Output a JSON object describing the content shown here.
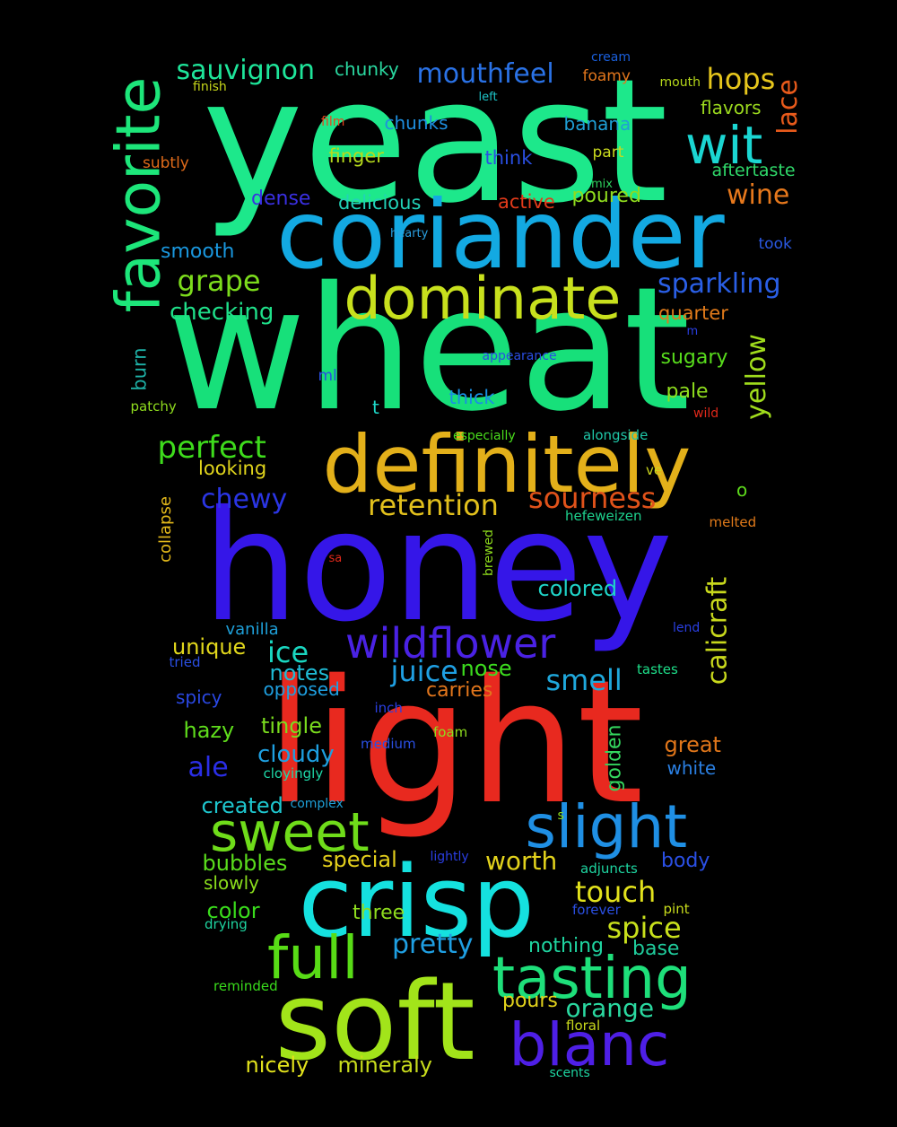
{
  "background": "#000000",
  "words": [
    {
      "text": "yeast",
      "color": "#1de88b"
    },
    {
      "text": "wheat",
      "color": "#17e07a"
    },
    {
      "text": "honey",
      "color": "#3516e8"
    },
    {
      "text": "light",
      "color": "#e8291f"
    },
    {
      "text": "coriander",
      "color": "#13a9e2"
    },
    {
      "text": "definitely",
      "color": "#e3b01a"
    },
    {
      "text": "crisp",
      "color": "#15e1df"
    },
    {
      "text": "soft",
      "color": "#a2e41a"
    },
    {
      "text": "dominate",
      "color": "#c8e01d"
    },
    {
      "text": "favorite",
      "color": "#1de67a"
    },
    {
      "text": "wildflower",
      "color": "#4a22e4"
    },
    {
      "text": "slight",
      "color": "#1f8fe4"
    },
    {
      "text": "sweet",
      "color": "#6fdc1a"
    },
    {
      "text": "full",
      "color": "#58dc16"
    },
    {
      "text": "tasting",
      "color": "#1edf7a"
    },
    {
      "text": "blanc",
      "color": "#4e1fe6"
    },
    {
      "text": "wit",
      "color": "#1bd6d2"
    },
    {
      "text": "sauvignon",
      "color": "#1ee59a"
    },
    {
      "text": "mouthfeel",
      "color": "#2a72e6"
    },
    {
      "text": "hops",
      "color": "#e6c61c"
    },
    {
      "text": "lace",
      "color": "#e85a1b"
    },
    {
      "text": "chunky",
      "color": "#2ad8a0"
    },
    {
      "text": "cream",
      "color": "#1a5fdc"
    },
    {
      "text": "foamy",
      "color": "#e2761c"
    },
    {
      "text": "finish",
      "color": "#c6d61a"
    },
    {
      "text": "left",
      "color": "#1ec5c9"
    },
    {
      "text": "mouth",
      "color": "#b6d81a"
    },
    {
      "text": "flavors",
      "color": "#9bd91e"
    },
    {
      "text": "film",
      "color": "#e8451e"
    },
    {
      "text": "chunks",
      "color": "#1e8fe0"
    },
    {
      "text": "banana",
      "color": "#1f9fd6"
    },
    {
      "text": "think",
      "color": "#2a4fe2"
    },
    {
      "text": "part",
      "color": "#c9d91e"
    },
    {
      "text": "subtly",
      "color": "#e06b1a"
    },
    {
      "text": "finger",
      "color": "#b6db1c"
    },
    {
      "text": "aftertaste",
      "color": "#2fd96a"
    },
    {
      "text": "mix",
      "color": "#2ed15e"
    },
    {
      "text": "dense",
      "color": "#3a2fe2"
    },
    {
      "text": "delicious",
      "color": "#22d2b8"
    },
    {
      "text": "active",
      "color": "#e23a1a"
    },
    {
      "text": "poured",
      "color": "#8fdb1e"
    },
    {
      "text": "wine",
      "color": "#e6781c"
    },
    {
      "text": "hearty",
      "color": "#2a9fe0"
    },
    {
      "text": "took",
      "color": "#2a58e2"
    },
    {
      "text": "smooth",
      "color": "#1a97de"
    },
    {
      "text": "grape",
      "color": "#7cdc1c"
    },
    {
      "text": "sparkling",
      "color": "#2a5fe6"
    },
    {
      "text": "checking",
      "color": "#1fe08a"
    },
    {
      "text": "quarter",
      "color": "#e07a1a"
    },
    {
      "text": "m",
      "color": "#2a3ee0"
    },
    {
      "text": "appearance",
      "color": "#2a4ee2"
    },
    {
      "text": "burn",
      "color": "#1eb0a6"
    },
    {
      "text": "yellow",
      "color": "#a0dc1c"
    },
    {
      "text": "sugary",
      "color": "#58dc1c"
    },
    {
      "text": "ml",
      "color": "#2a4ee2"
    },
    {
      "text": "pale",
      "color": "#8edc1e"
    },
    {
      "text": "thick",
      "color": "#1a8fe2"
    },
    {
      "text": "patchy",
      "color": "#8fdc1e"
    },
    {
      "text": "t",
      "color": "#1ed7c8"
    },
    {
      "text": "wild",
      "color": "#e0281a"
    },
    {
      "text": "especially",
      "color": "#4ade1c"
    },
    {
      "text": "alongside",
      "color": "#1fc7a8"
    },
    {
      "text": "perfect",
      "color": "#3edb1c"
    },
    {
      "text": "looking",
      "color": "#e0d41c"
    },
    {
      "text": "ve",
      "color": "#cbd51e"
    },
    {
      "text": "o",
      "color": "#5edb1c"
    },
    {
      "text": "chewy",
      "color": "#2a35e4"
    },
    {
      "text": "retention",
      "color": "#e2c01c"
    },
    {
      "text": "sourness",
      "color": "#e0521a"
    },
    {
      "text": "collapse",
      "color": "#e2b81a"
    },
    {
      "text": "hefeweizen",
      "color": "#1ed28e"
    },
    {
      "text": "melted",
      "color": "#e07a1a"
    },
    {
      "text": "sa",
      "color": "#e0281a"
    },
    {
      "text": "brewed",
      "color": "#8edc1c"
    },
    {
      "text": "calicraft",
      "color": "#c8d81c"
    },
    {
      "text": "colored",
      "color": "#1fd4c8"
    },
    {
      "text": "vanilla",
      "color": "#1e9fd8"
    },
    {
      "text": "lend",
      "color": "#2a3fe2"
    },
    {
      "text": "unique",
      "color": "#e2d81c"
    },
    {
      "text": "ice",
      "color": "#1ad6c0"
    },
    {
      "text": "tried",
      "color": "#2a4fe4"
    },
    {
      "text": "juice",
      "color": "#1f9fe2"
    },
    {
      "text": "nose",
      "color": "#3cdc1e"
    },
    {
      "text": "notes",
      "color": "#1fbcd6"
    },
    {
      "text": "smell",
      "color": "#1fa8dc"
    },
    {
      "text": "tastes",
      "color": "#1edf8a"
    },
    {
      "text": "spicy",
      "color": "#2a48e4"
    },
    {
      "text": "opposed",
      "color": "#1e9fe0"
    },
    {
      "text": "carries",
      "color": "#e2761c"
    },
    {
      "text": "inch",
      "color": "#2a3fe2"
    },
    {
      "text": "hazy",
      "color": "#5fdc1c"
    },
    {
      "text": "tingle",
      "color": "#7adc1e"
    },
    {
      "text": "foam",
      "color": "#8edc1e"
    },
    {
      "text": "golden",
      "color": "#34d65e"
    },
    {
      "text": "great",
      "color": "#e0761a"
    },
    {
      "text": "medium",
      "color": "#2a4fe2"
    },
    {
      "text": "cloudy",
      "color": "#1e9fe0"
    },
    {
      "text": "ale",
      "color": "#2a2ee6"
    },
    {
      "text": "white",
      "color": "#2a7fe2"
    },
    {
      "text": "cloyingly",
      "color": "#1ed8a8"
    },
    {
      "text": "created",
      "color": "#1ec6ce"
    },
    {
      "text": "complex",
      "color": "#1e9fd6"
    },
    {
      "text": "s",
      "color": "#8edc1c"
    },
    {
      "text": "bubbles",
      "color": "#5adc1c"
    },
    {
      "text": "special",
      "color": "#e2ce1c"
    },
    {
      "text": "lightly",
      "color": "#2a3ee2"
    },
    {
      "text": "worth",
      "color": "#e2d21c"
    },
    {
      "text": "body",
      "color": "#2a4fe4"
    },
    {
      "text": "slowly",
      "color": "#8adc1c"
    },
    {
      "text": "adjuncts",
      "color": "#1ed4a0"
    },
    {
      "text": "touch",
      "color": "#e2e21c"
    },
    {
      "text": "color",
      "color": "#3adc1c"
    },
    {
      "text": "drying",
      "color": "#1ed4a0"
    },
    {
      "text": "three",
      "color": "#8edc1e"
    },
    {
      "text": "forever",
      "color": "#2a4fe2"
    },
    {
      "text": "pint",
      "color": "#c8dc1c"
    },
    {
      "text": "spice",
      "color": "#c8e01c"
    },
    {
      "text": "pretty",
      "color": "#1f9fe2"
    },
    {
      "text": "nothing",
      "color": "#1fd4a0"
    },
    {
      "text": "base",
      "color": "#1fcc9c"
    },
    {
      "text": "reminded",
      "color": "#3adc1c"
    },
    {
      "text": "pours",
      "color": "#e2d21c"
    },
    {
      "text": "orange",
      "color": "#2ad8a0"
    },
    {
      "text": "floral",
      "color": "#c8d81c"
    },
    {
      "text": "nicely",
      "color": "#e2e21c"
    },
    {
      "text": "mineraly",
      "color": "#c8dc1c"
    },
    {
      "text": "scents",
      "color": "#1ed4a0"
    }
  ]
}
